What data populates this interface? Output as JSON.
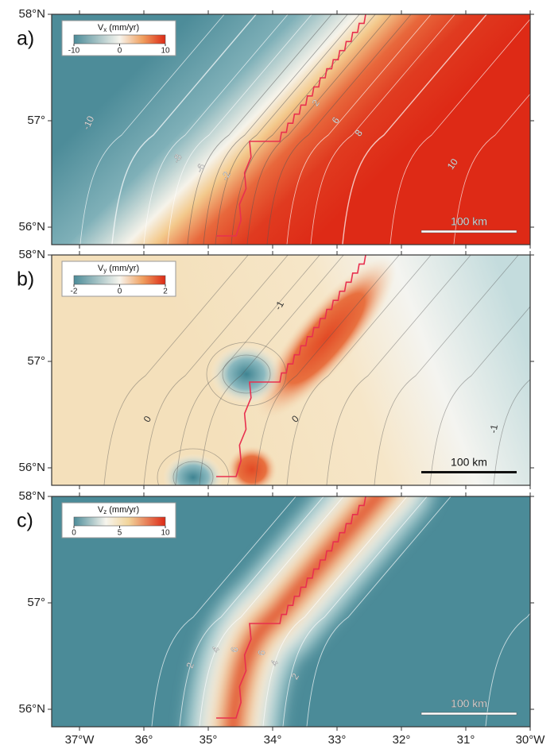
{
  "panels": [
    {
      "label": "a)",
      "colorbar": {
        "symbol": "V",
        "subscript": "x",
        "unit": "(mm/yr)",
        "ticks": [
          -10,
          0,
          10
        ]
      },
      "contour_labels": [
        -10,
        -8,
        -6,
        -2,
        2,
        6,
        8,
        10
      ],
      "scale_bar": "100 km",
      "lat_ticks": [
        "58°N",
        "57°",
        "56°N"
      ]
    },
    {
      "label": "b)",
      "colorbar": {
        "symbol": "V",
        "subscript": "y",
        "unit": "(mm/yr)",
        "ticks": [
          -2,
          0,
          2
        ]
      },
      "contour_labels": [
        -1,
        0,
        0,
        -1
      ],
      "scale_bar": "100 km",
      "lat_ticks": [
        "58°N",
        "57°",
        "56°N"
      ]
    },
    {
      "label": "c)",
      "colorbar": {
        "symbol": "V",
        "subscript": "z",
        "unit": "(mm/yr)",
        "ticks": [
          0,
          5,
          10
        ]
      },
      "contour_labels": [
        2,
        4,
        6,
        6,
        4,
        2
      ],
      "scale_bar": "100 km",
      "lat_ticks": [
        "58°N",
        "57°",
        "56°N"
      ]
    }
  ],
  "lon_ticks": [
    "37°W",
    "36°",
    "35°",
    "34°",
    "33°",
    "32°",
    "31°",
    "30°W"
  ]
}
